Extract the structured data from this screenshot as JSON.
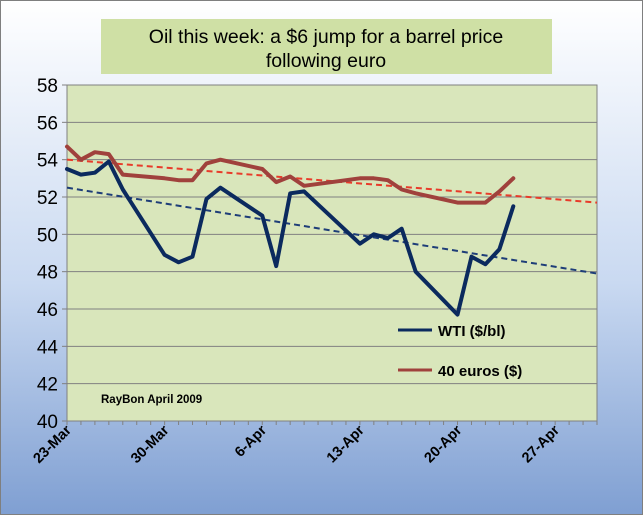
{
  "chart_data": {
    "type": "line",
    "title_lines": [
      "Oil this week: a $6 jump for a barrel price",
      "following euro"
    ],
    "xlabel": "",
    "ylabel": "",
    "ylim": [
      40,
      58
    ],
    "ytick_step": 2,
    "xlim": [
      "2009-03-23",
      "2009-04-30"
    ],
    "x_tick_labels": [
      "23-Mar",
      "30-Mar",
      "6-Apr",
      "13-Apr",
      "20-Apr",
      "27-Apr"
    ],
    "grid": true,
    "legend_position": "right",
    "annotation": "RayBon April  2009",
    "colors": {
      "background": "#d9e6bb",
      "title_box": "#cfe0a5",
      "wti": "#0b2a5e",
      "euro": "#a0413c",
      "euro_trend": "#e83b2a",
      "wti_trend": "#1e3d78",
      "grid": "#808080"
    },
    "series": [
      {
        "name": "WTI ($/bl)",
        "key": "wti",
        "x": [
          "2009-03-23",
          "2009-03-24",
          "2009-03-25",
          "2009-03-26",
          "2009-03-27",
          "2009-03-30",
          "2009-03-31",
          "2009-04-01",
          "2009-04-02",
          "2009-04-03",
          "2009-04-06",
          "2009-04-07",
          "2009-04-08",
          "2009-04-09",
          "2009-04-13",
          "2009-04-14",
          "2009-04-15",
          "2009-04-16",
          "2009-04-17",
          "2009-04-20",
          "2009-04-21",
          "2009-04-22",
          "2009-04-23",
          "2009-04-24"
        ],
        "values": [
          53.5,
          53.2,
          53.3,
          53.9,
          52.4,
          48.9,
          48.5,
          48.8,
          51.9,
          52.5,
          51.0,
          48.3,
          52.2,
          52.3,
          49.5,
          50.0,
          49.8,
          50.3,
          48.0,
          45.7,
          48.8,
          48.4,
          49.2,
          51.5
        ]
      },
      {
        "name": "40 euros  ($)",
        "key": "euro",
        "x": [
          "2009-03-23",
          "2009-03-24",
          "2009-03-25",
          "2009-03-26",
          "2009-03-27",
          "2009-03-30",
          "2009-03-31",
          "2009-04-01",
          "2009-04-02",
          "2009-04-03",
          "2009-04-06",
          "2009-04-07",
          "2009-04-08",
          "2009-04-09",
          "2009-04-13",
          "2009-04-14",
          "2009-04-15",
          "2009-04-16",
          "2009-04-17",
          "2009-04-20",
          "2009-04-21",
          "2009-04-22",
          "2009-04-23",
          "2009-04-24"
        ],
        "values": [
          54.7,
          54.0,
          54.4,
          54.3,
          53.2,
          53.0,
          52.9,
          52.9,
          53.8,
          54.0,
          53.5,
          52.8,
          53.1,
          52.6,
          53.0,
          53.0,
          52.9,
          52.4,
          52.2,
          51.7,
          51.7,
          51.7,
          52.3,
          53.0
        ]
      }
    ],
    "trendlines": [
      {
        "series": "euro",
        "x": [
          "2009-03-23",
          "2009-04-30"
        ],
        "values": [
          54.0,
          51.7
        ]
      },
      {
        "series": "wti",
        "x": [
          "2009-03-23",
          "2009-04-30"
        ],
        "values": [
          52.5,
          47.9
        ]
      }
    ]
  }
}
